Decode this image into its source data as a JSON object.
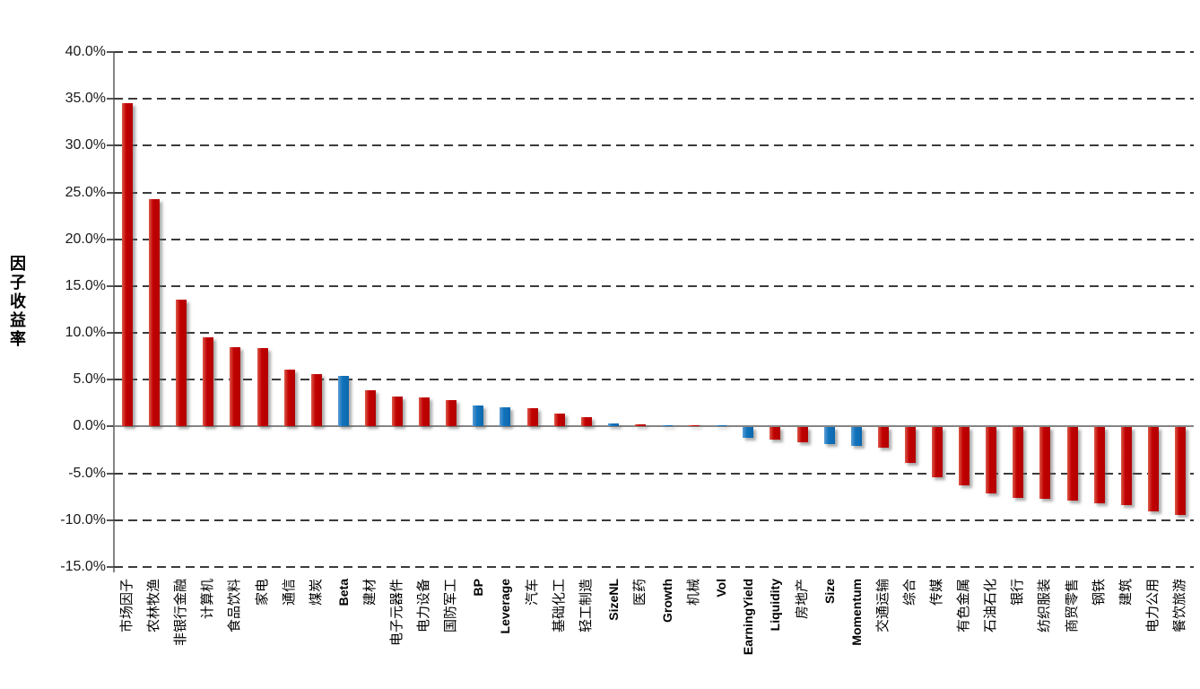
{
  "chart_data": {
    "type": "bar",
    "title": "",
    "xlabel": "",
    "ylabel": "因子收益率",
    "ylim": [
      -15,
      40
    ],
    "ytick_step": 5,
    "grid": "dashed-horizontal",
    "legend": "none",
    "background": "#FFFFFF",
    "y_ticks": [
      {
        "value": 40,
        "label": "40.0%"
      },
      {
        "value": 35,
        "label": "35.0%"
      },
      {
        "value": 30,
        "label": "30.0%"
      },
      {
        "value": 25,
        "label": "25.0%"
      },
      {
        "value": 20,
        "label": "20.0%"
      },
      {
        "value": 15,
        "label": "15.0%"
      },
      {
        "value": 10,
        "label": "10.0%"
      },
      {
        "value": 5,
        "label": "5.0%"
      },
      {
        "value": 0,
        "label": "0.0%"
      },
      {
        "value": -5,
        "label": "-5.0%"
      },
      {
        "value": -10,
        "label": "-10.0%"
      },
      {
        "value": -15,
        "label": "-15.0%"
      }
    ],
    "categories": [
      "市场因子",
      "农林牧渔",
      "非银行金融",
      "计算机",
      "食品饮料",
      "家电",
      "通信",
      "煤炭",
      "Beta",
      "建材",
      "电子元器件",
      "电力设备",
      "国防军工",
      "BP",
      "Leverage",
      "汽车",
      "基础化工",
      "轻工制造",
      "SizeNL",
      "医药",
      "Growth",
      "机械",
      "Vol",
      "EarningYield",
      "Liquidity",
      "房地产",
      "Size",
      "Momentum",
      "交通运输",
      "综合",
      "传媒",
      "有色金属",
      "石油石化",
      "银行",
      "纺织服装",
      "商贸零售",
      "钢铁",
      "建筑",
      "电力公用",
      "餐饮旅游"
    ],
    "values": [
      34.5,
      24.3,
      13.6,
      9.5,
      8.5,
      8.4,
      6.1,
      5.6,
      5.4,
      3.9,
      3.2,
      3.1,
      2.8,
      2.2,
      2.1,
      2.0,
      1.35,
      1.0,
      0.35,
      0.25,
      0.15,
      0.15,
      0.1,
      -1.1,
      -1.3,
      -1.6,
      -1.8,
      -2.0,
      -2.2,
      -3.8,
      -5.3,
      -6.2,
      -7.0,
      -7.5,
      -7.6,
      -7.8,
      -8.1,
      -8.3,
      -9.0,
      -9.3
    ],
    "bar_colors": [
      "red",
      "red",
      "red",
      "red",
      "red",
      "red",
      "red",
      "red",
      "blue",
      "red",
      "red",
      "red",
      "red",
      "blue",
      "blue",
      "red",
      "red",
      "red",
      "blue",
      "red",
      "blue",
      "red",
      "blue",
      "blue",
      "red",
      "red",
      "blue",
      "blue",
      "red",
      "red",
      "red",
      "red",
      "red",
      "red",
      "red",
      "red",
      "red",
      "red",
      "red",
      "red"
    ],
    "bold_labels": [
      "Beta",
      "BP",
      "Leverage",
      "SizeNL",
      "Growth",
      "Vol",
      "EarningYield",
      "Liquidity",
      "Size",
      "Momentum"
    ],
    "colors": {
      "red": "#C00000",
      "blue": "#1173BC"
    }
  }
}
